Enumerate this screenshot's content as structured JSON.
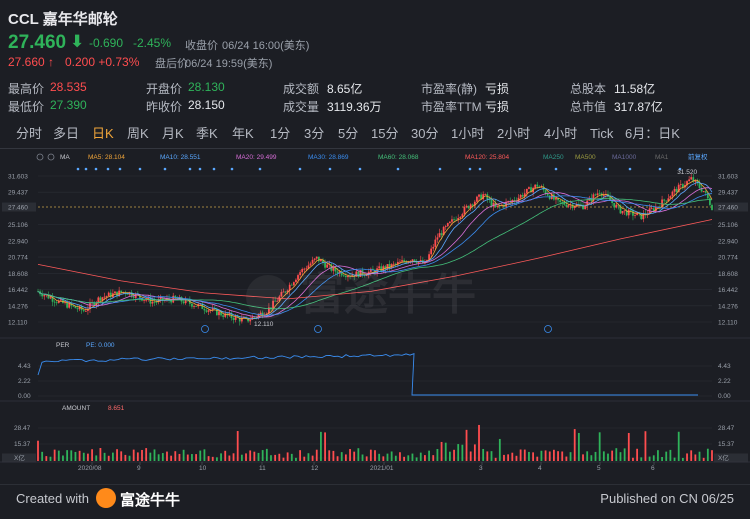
{
  "header": {
    "title": "CCL 嘉年华邮轮",
    "price": "27.460",
    "change": "-0.690",
    "change_pct": "-2.45%",
    "close_label": "收盘价",
    "close_time": "06/24 16:00(美东)",
    "after_hours_price": "27.660",
    "after_hours_arrow": "↑",
    "after_hours_change": "0.200 +0.73%",
    "after_hours_label": "盘后价",
    "after_hours_time": "06/24 19:59(美东)",
    "arrow": "⬇"
  },
  "stats": [
    {
      "label": "最高价",
      "value": "28.535",
      "color": "red"
    },
    {
      "label": "最低价",
      "value": "27.390",
      "color": "grn"
    },
    {
      "label": "开盘价",
      "value": "28.130",
      "color": "grn"
    },
    {
      "label": "昨收价",
      "value": "28.150",
      "color": "wht"
    },
    {
      "label": "成交额",
      "value": "8.65亿",
      "color": "wht"
    },
    {
      "label": "成交量",
      "value": "3119.36万",
      "color": "wht"
    },
    {
      "label": "市盈率(静)",
      "value": "亏损",
      "color": "wht"
    },
    {
      "label": "市盈率TTM",
      "value": "亏损",
      "color": "wht"
    },
    {
      "label": "总股本",
      "value": "11.58亿",
      "color": "wht"
    },
    {
      "label": "总市值",
      "value": "317.87亿",
      "color": "wht"
    }
  ],
  "tabs": [
    "分时",
    "多日",
    "日K",
    "周K",
    "月K",
    "季K",
    "年K",
    "1分",
    "3分",
    "5分",
    "15分",
    "30分",
    "1小时",
    "2小时",
    "4小时",
    "Tick",
    "6月：日K"
  ],
  "active_tab": 2,
  "ma_legend": [
    {
      "label": "MA",
      "color": "#c7c9cf"
    },
    {
      "label": "MA5: 28.104",
      "color": "#f0a53a"
    },
    {
      "label": "MA10: 28.551",
      "color": "#5aa8ff"
    },
    {
      "label": "MA20: 29.499",
      "color": "#d86ed8"
    },
    {
      "label": "MA30: 28.869",
      "color": "#3a8df0"
    },
    {
      "label": "MA60: 28.068",
      "color": "#44c07a"
    },
    {
      "label": "MA120: 25.804",
      "color": "#ff5a5a"
    },
    {
      "label": "MA250",
      "color": "#2f9a8a"
    },
    {
      "label": "MA500",
      "color": "#9a9a40"
    },
    {
      "label": "MA1000",
      "color": "#6a6a9a"
    },
    {
      "label": "MA1",
      "color": "#6a6a6a"
    },
    {
      "label": "前复权",
      "color": "#5aa8ff"
    }
  ],
  "price_axis": [
    "31.603",
    "29.437",
    "27.460",
    "25.106",
    "22.940",
    "20.774",
    "18.608",
    "16.442",
    "14.276",
    "12.110"
  ],
  "marks": {
    "high": "31.520",
    "low": "12.110"
  },
  "per_panel": {
    "label": "PER",
    "value": "PE: 0.000",
    "ticks": [
      "4.43",
      "2.22",
      "0.00"
    ]
  },
  "amount_panel": {
    "label": "AMOUNT",
    "value": "8.651",
    "ticks": [
      "28.47",
      "15.37",
      "X亿"
    ]
  },
  "x_axis": [
    "2020/08",
    "9",
    "10",
    "11",
    "12",
    "2021/01",
    "3",
    "4",
    "5",
    "6"
  ],
  "watermark": "富途牛牛",
  "footer": {
    "created": "Created with",
    "brand": "富途牛牛",
    "published": "Published on CN 06/25"
  },
  "chart_data": {
    "type": "candlestick",
    "ylim": [
      12.11,
      31.603
    ],
    "high": 31.52,
    "low": 12.11,
    "last": 27.46
  }
}
